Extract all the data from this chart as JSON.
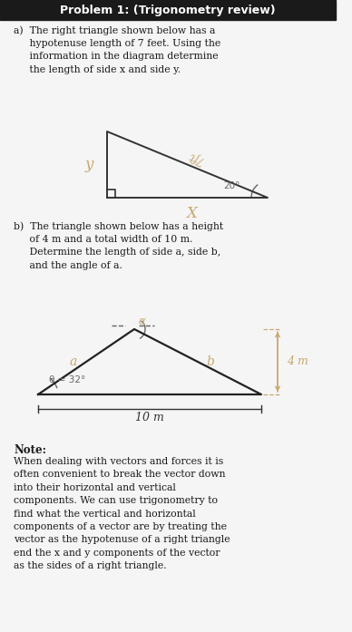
{
  "title": "Problem 1: (Trigonometry review)",
  "bg_color": "#f5f5f5",
  "text_color": "#1a1a1a",
  "section_a_text": "a)  The right triangle shown below has a\n     hypotenuse length of 7 feet. Using the\n     information in the diagram determine\n     the length of side x and side y.",
  "section_b_text": "b)  The triangle shown below has a height\n     of 4 m and a total width of 10 m.\n     Determine the length of side a, side b,\n     and the angle of a.",
  "note_title": "Note:",
  "note_text": "When dealing with vectors and forces it is\noften convenient to break the vector down\ninto their horizontal and vertical\ncomponents. We can use trigonometry to\nfind what the vertical and horizontal\ncomponents of a vector are by treating the\nvector as the hypotenuse of a right triangle\nend the x and y components of the vector\nas the sides of a right triangle.",
  "handwritten_color": "#c8a870",
  "dark_color": "#333333",
  "mid_color": "#666666",
  "title_bar_color": "#1a1a1a"
}
